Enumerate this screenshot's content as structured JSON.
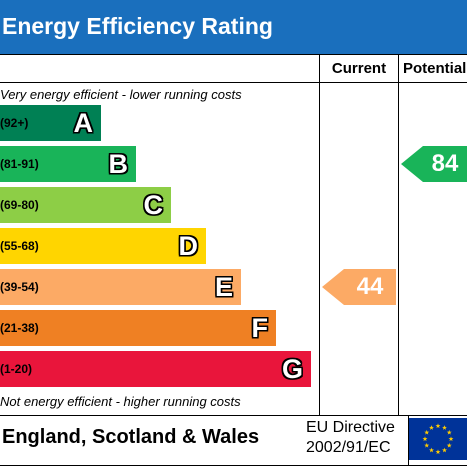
{
  "title": "Energy Efficiency Rating",
  "columns": {
    "current": "Current",
    "potential": "Potential"
  },
  "top_note": "Very energy efficient - lower running costs",
  "bottom_note": "Not energy efficient - higher running costs",
  "colors": {
    "header": "#1a6fbd",
    "A": "#008054",
    "B": "#19b459",
    "C": "#8dce46",
    "D": "#ffd500",
    "E": "#fcaa65",
    "F": "#ef8023",
    "G": "#e9153b"
  },
  "chart_data": {
    "type": "bar",
    "bands": [
      {
        "letter": "A",
        "range": "(92+)"
      },
      {
        "letter": "B",
        "range": "(81-91)"
      },
      {
        "letter": "C",
        "range": "(69-80)"
      },
      {
        "letter": "D",
        "range": "(55-68)"
      },
      {
        "letter": "E",
        "range": "(39-54)"
      },
      {
        "letter": "F",
        "range": "(21-38)"
      },
      {
        "letter": "G",
        "range": "(1-20)"
      }
    ],
    "current": {
      "value": 44,
      "band": "E"
    },
    "potential": {
      "value": 84,
      "band": "B"
    }
  },
  "footer": {
    "country": "England, Scotland & Wales",
    "directive_line1": "EU Directive",
    "directive_line2": "2002/91/EC"
  },
  "flag_icon": "eu-flag-icon"
}
